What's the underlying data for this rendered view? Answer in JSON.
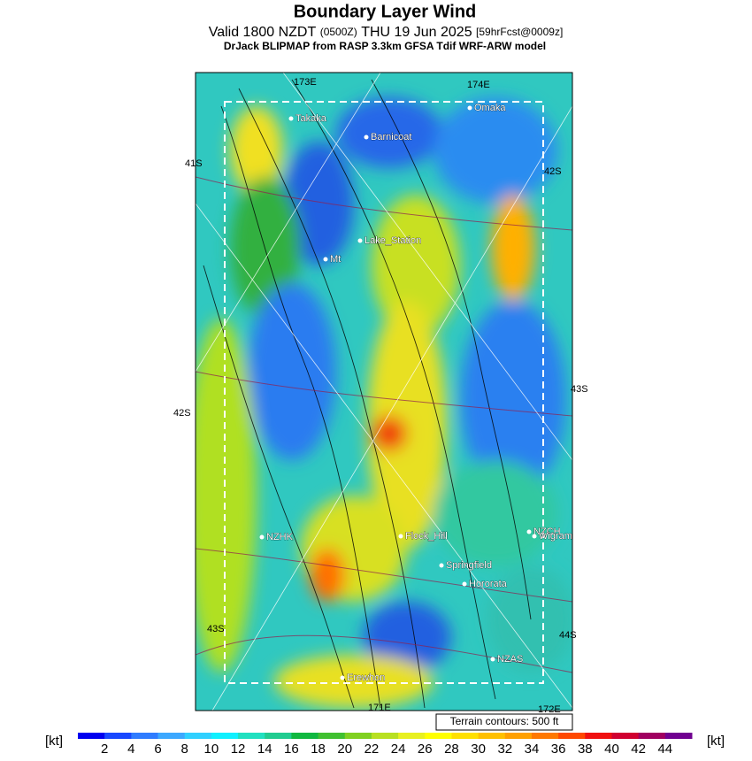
{
  "header": {
    "title": "Boundary Layer Wind",
    "valid": "Valid 1800 NZDT",
    "zulu": "(0500Z)",
    "date": "THU 19 Jun 2025",
    "forecast": "[59hrFcst@0009z]",
    "model": "DrJack BLIPMAP from RASP 3.3km GFSA Tdif WRF-ARW model"
  },
  "map": {
    "grid_labels": [
      "173E",
      "174E",
      "41S",
      "42S",
      "43S",
      "42S",
      "43S",
      "44S",
      "171E",
      "172E"
    ],
    "places": [
      "Takaka",
      "Barnicoat",
      "Omaka",
      "Lake_Station",
      "Mt",
      "NZHK",
      "Flock_Hill",
      "Springfield",
      "Hororata",
      "NZCH",
      "Wigram",
      "NZAS",
      "Erewhon"
    ],
    "note": "Terrain contours: 500 ft"
  },
  "colorbar": {
    "unit": "[kt]",
    "ticks": [
      2,
      4,
      6,
      8,
      10,
      12,
      14,
      16,
      18,
      20,
      22,
      24,
      26,
      28,
      30,
      32,
      34,
      36,
      38,
      40,
      42,
      44
    ],
    "colors": [
      "#0000f0",
      "#1848ff",
      "#2f7cff",
      "#3ca8ff",
      "#30d0ff",
      "#10f0ff",
      "#20e0c0",
      "#20cc90",
      "#10b840",
      "#40c030",
      "#80d020",
      "#b8e020",
      "#e8f020",
      "#ffff00",
      "#ffe000",
      "#ffc000",
      "#ffa000",
      "#ff7800",
      "#ff4800",
      "#f01010",
      "#d00030",
      "#a00060",
      "#700090"
    ]
  }
}
